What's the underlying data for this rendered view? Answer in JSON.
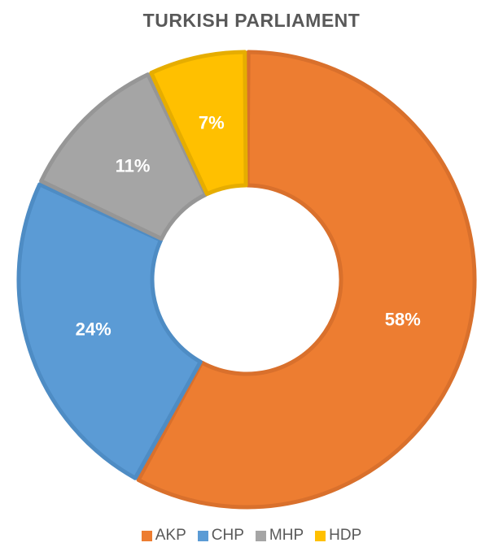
{
  "chart_data": {
    "type": "pie",
    "title": "TURKISH PARLIAMENT",
    "categories": [
      "AKP",
      "CHP",
      "MHP",
      "HDP"
    ],
    "values": [
      58,
      24,
      11,
      7
    ],
    "data_labels": [
      "58%",
      "24%",
      "11%",
      "7%"
    ],
    "colors": [
      "#ED7D31",
      "#5B9BD5",
      "#A5A5A5",
      "#FFC000"
    ],
    "border_colors": [
      "#D9702C",
      "#4E8CC4",
      "#969696",
      "#E6AD00"
    ],
    "donut": true,
    "legend_position": "bottom"
  }
}
